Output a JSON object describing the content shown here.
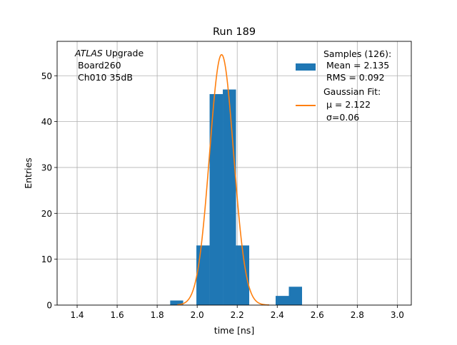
{
  "chart_data": {
    "type": "bar",
    "title": "Run 189",
    "xlabel": "time [ns]",
    "ylabel": "Entries",
    "xlim": [
      1.3,
      3.07
    ],
    "ylim": [
      0,
      57.5
    ],
    "xticks": [
      1.4,
      1.6,
      1.8,
      2.0,
      2.2,
      2.4,
      2.6,
      2.8,
      3.0
    ],
    "xtick_labels": [
      "1.4",
      "1.6",
      "1.8",
      "2.0",
      "2.2",
      "2.4",
      "2.6",
      "2.8",
      "3.0"
    ],
    "yticks": [
      0,
      10,
      20,
      30,
      40,
      50
    ],
    "ytick_labels": [
      "0",
      "10",
      "20",
      "30",
      "40",
      "50"
    ],
    "grid": true,
    "legend_position": "upper-right",
    "annotation": {
      "italic": "ATLAS",
      "line1_rest": " Upgrade",
      "line2": "Board260",
      "line3": "Ch010 35dB"
    },
    "histogram": {
      "name": "Samples (126):",
      "legend_lines": [
        "Samples (126):",
        " Mean = 2.135",
        " RMS = 0.092"
      ],
      "color": "#1f77b4",
      "bins": [
        {
          "x0": 1.865,
          "x1": 1.93,
          "count": 1
        },
        {
          "x0": 1.996,
          "x1": 2.062,
          "count": 13
        },
        {
          "x0": 2.062,
          "x1": 2.128,
          "count": 46
        },
        {
          "x0": 2.128,
          "x1": 2.194,
          "count": 47
        },
        {
          "x0": 2.194,
          "x1": 2.26,
          "count": 13
        },
        {
          "x0": 2.392,
          "x1": 2.458,
          "count": 2
        },
        {
          "x0": 2.458,
          "x1": 2.524,
          "count": 4
        }
      ]
    },
    "fit": {
      "name": "Gaussian Fit:",
      "legend_lines": [
        "Gaussian Fit:",
        " μ = 2.122",
        " σ=0.06"
      ],
      "color": "#ff7f0e",
      "mu": 2.122,
      "sigma": 0.06,
      "amplitude": 54.6,
      "x_start": 1.9,
      "x_end": 2.36
    }
  }
}
